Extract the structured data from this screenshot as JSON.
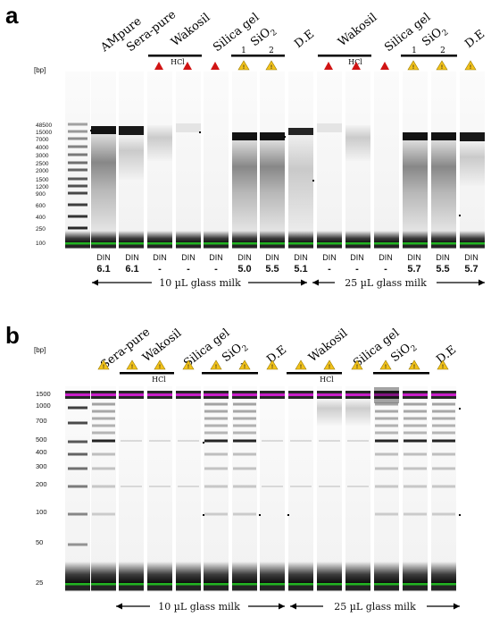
{
  "panel_a": {
    "label": "a",
    "bp_label": "[bp]",
    "ladder": [
      "48500",
      "15000",
      "7000",
      "4000",
      "3000",
      "2500",
      "2000",
      "1500",
      "1200",
      "900",
      "600",
      "400",
      "250",
      "100"
    ],
    "samples": [
      "AMpure",
      "Sera-pure",
      "Wakosil",
      "Silica gel",
      "SiO",
      "D.E",
      "Wakosil",
      "Silica gel",
      "SiO",
      "D.E"
    ],
    "sio_subscript": "2",
    "hcl": [
      "HCl",
      "HCl"
    ],
    "sio_numbers": [
      "1",
      "2",
      "1",
      "2"
    ],
    "din_label": "DIN",
    "din_values": [
      "6.1",
      "6.1",
      "-",
      "-",
      "-",
      "5.0",
      "5.5",
      "5.1",
      "-",
      "-",
      "-",
      "5.7",
      "5.5",
      "5.7"
    ],
    "volume_left": "10 µL glass milk",
    "volume_right": "25 µL glass milk",
    "marker_colors": {
      "red": "#d01414",
      "yellow": "#f2c21a"
    }
  },
  "panel_b": {
    "label": "b",
    "bp_label": "[bp]",
    "ladder": [
      "1500",
      "1000",
      "700",
      "500",
      "400",
      "300",
      "200",
      "100",
      "50",
      "25"
    ],
    "samples": [
      "Sera-pure",
      "Wakosil",
      "Silica gel",
      "SiO",
      "D.E",
      "Wakosil",
      "Silica gel",
      "SiO",
      "D.E"
    ],
    "sio_subscript": "2",
    "hcl": [
      "HCl",
      "HCl"
    ],
    "sio_numbers": [
      "1",
      "2",
      "1",
      "2"
    ],
    "volume_left": "10 µL glass milk",
    "volume_right": "25 µL glass milk",
    "upper_marker_color": "#c81ec8",
    "lower_marker_color": "#22b422"
  },
  "warn_glyph": "!"
}
